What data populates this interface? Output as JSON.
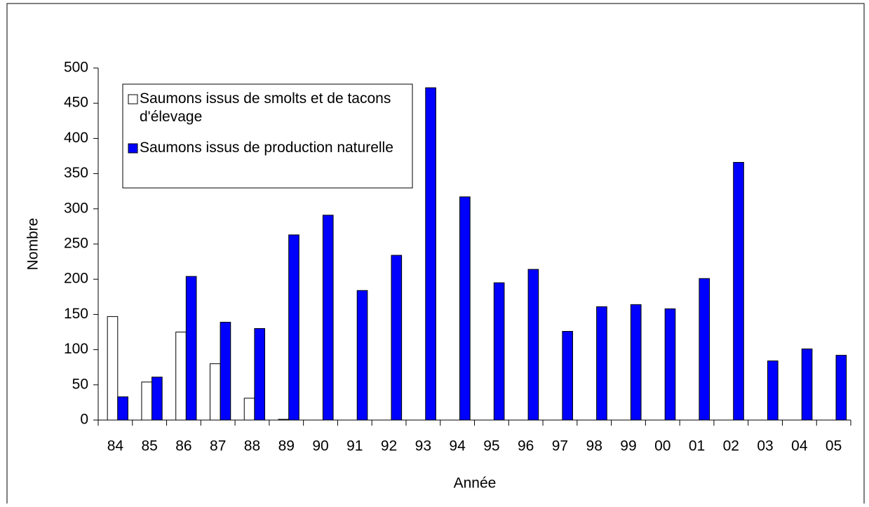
{
  "chart_data": {
    "type": "bar",
    "x_label": "Année",
    "y_label": "Nombre",
    "categories": [
      "84",
      "85",
      "86",
      "87",
      "88",
      "89",
      "90",
      "91",
      "92",
      "93",
      "94",
      "95",
      "96",
      "97",
      "98",
      "99",
      "00",
      "01",
      "02",
      "03",
      "04",
      "05"
    ],
    "series": [
      {
        "name": "Saumons issus de smolts et de tacons d'élevage",
        "color": "#ffffff",
        "values": [
          147,
          54,
          125,
          80,
          31,
          1,
          0,
          0,
          0,
          0,
          0,
          0,
          0,
          0,
          0,
          0,
          0,
          0,
          0,
          0,
          0,
          0
        ]
      },
      {
        "name": "Saumons issus de production naturelle",
        "color": "#0000ff",
        "values": [
          33,
          61,
          204,
          139,
          130,
          263,
          291,
          184,
          234,
          472,
          317,
          195,
          214,
          126,
          161,
          164,
          158,
          201,
          366,
          84,
          101,
          92
        ]
      }
    ],
    "ylim": [
      0,
      500
    ],
    "yticks": [
      0,
      50,
      100,
      150,
      200,
      250,
      300,
      350,
      400,
      450,
      500
    ],
    "legend": "upper left"
  }
}
